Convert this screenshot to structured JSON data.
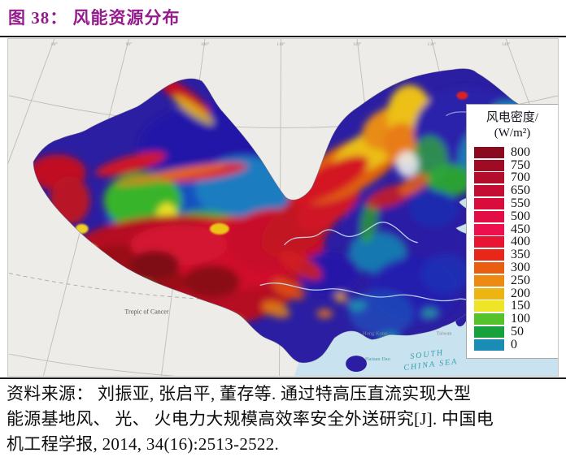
{
  "figure": {
    "title": "图 38： 风能资源分布"
  },
  "colors": {
    "title_accent": "#951b8d",
    "sea": "#c9e2f0",
    "map_background": "#edece9"
  },
  "map": {
    "meridian_labels": [
      "80°",
      "90°",
      "100°",
      "110°",
      "120°",
      "130°",
      "140°"
    ],
    "tropic_label": "Tropic of Cancer",
    "labels": {
      "south_china_sea_line1": "SOUTH",
      "south_china_sea_line2": "CHINA SEA",
      "hainan": "Hainan Dao",
      "hong_kong": "Hong Kong",
      "taiwan": "Taiwan"
    }
  },
  "legend": {
    "title_line1": "风电密度/",
    "title_line2": "(W/m²)",
    "entries": [
      {
        "value": "800",
        "color": "#8a0a1e"
      },
      {
        "value": "750",
        "color": "#9e0b22"
      },
      {
        "value": "700",
        "color": "#b30d2b"
      },
      {
        "value": "650",
        "color": "#c30d33"
      },
      {
        "value": "550",
        "color": "#d90d3c"
      },
      {
        "value": "500",
        "color": "#e30d46"
      },
      {
        "value": "450",
        "color": "#ec104e"
      },
      {
        "value": "400",
        "color": "#e81434"
      },
      {
        "value": "350",
        "color": "#e82718"
      },
      {
        "value": "300",
        "color": "#ea5e12"
      },
      {
        "value": "250",
        "color": "#ec8a12"
      },
      {
        "value": "200",
        "color": "#edb512"
      },
      {
        "value": "150",
        "color": "#eee428"
      },
      {
        "value": "100",
        "color": "#55c22c"
      },
      {
        "value": "50",
        "color": "#17a13c"
      },
      {
        "value": "0",
        "color": "#1b8cb5"
      }
    ]
  },
  "source": {
    "lines": [
      "资料来源： 刘振亚, 张启平, 董存等. 通过特高压直流实现大型",
      "能源基地风、 光、 火电力大规模高效率安全外送研究[J]. 中国电",
      "机工程学报, 2014, 34(16):2513-2522."
    ]
  }
}
